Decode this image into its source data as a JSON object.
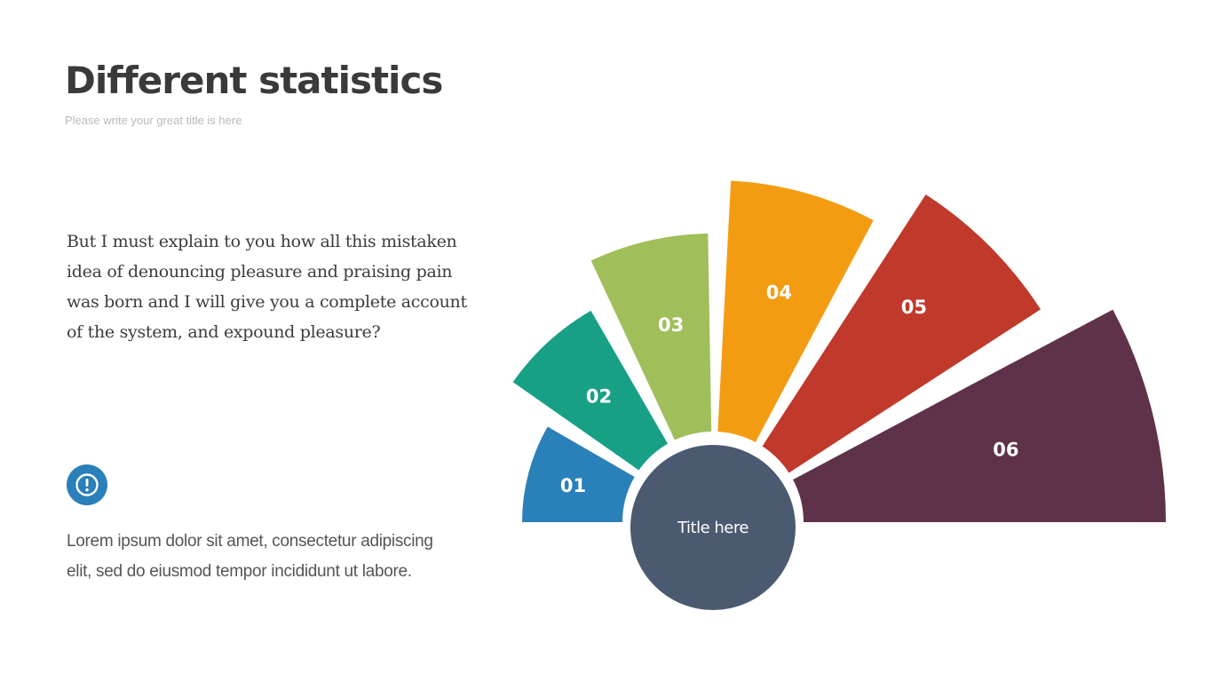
{
  "header": {
    "title": "Different statistics",
    "subtitle": "Please write your great title is here"
  },
  "body": {
    "paragraph": "But I must explain to you how all this mistaken idea of denouncing pleasure and praising pain was born and I will give you a complete account of the system, and expound pleasure?",
    "icon": "exclamation-circle-icon",
    "lorem": "Lorem ipsum dolor sit amet, consectetur adipiscing elit, sed do eiusmod tempor incididunt ut labore."
  },
  "diagram": {
    "hub_label": "Title here",
    "hub_color": "#4a5a70",
    "segments": [
      {
        "label": "01",
        "color": "#2a80b9",
        "size": 1
      },
      {
        "label": "02",
        "color": "#17a086",
        "size": 2
      },
      {
        "label": "03",
        "color": "#a0bf5a",
        "size": 3
      },
      {
        "label": "04",
        "color": "#f39c12",
        "size": 4
      },
      {
        "label": "05",
        "color": "#c0392b",
        "size": 5
      },
      {
        "label": "06",
        "color": "#5e3349",
        "size": 6
      }
    ]
  },
  "colors": {
    "title": "#3a3a3a",
    "icon": "#2a80b9"
  }
}
